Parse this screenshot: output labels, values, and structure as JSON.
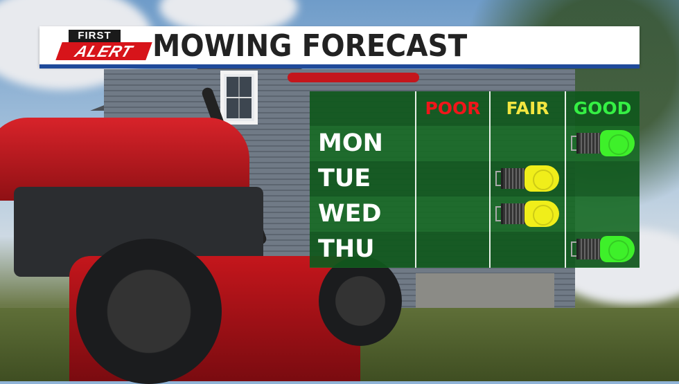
{
  "header": {
    "logo_top": "FIRST",
    "logo_bottom": "ALERT",
    "title": "MOWING FORECAST"
  },
  "columns": [
    {
      "label": "POOR",
      "color": "#f0161a"
    },
    {
      "label": "FAIR",
      "color": "#f2e640"
    },
    {
      "label": "GOOD",
      "color": "#35f044"
    }
  ],
  "days": [
    {
      "label": "MON",
      "rating": "GOOD"
    },
    {
      "label": "TUE",
      "rating": "FAIR"
    },
    {
      "label": "WED",
      "rating": "FAIR"
    },
    {
      "label": "THU",
      "rating": "GOOD"
    }
  ],
  "mower_colors": {
    "FAIR": "#f0ee1a",
    "GOOD": "#3ef02a"
  }
}
